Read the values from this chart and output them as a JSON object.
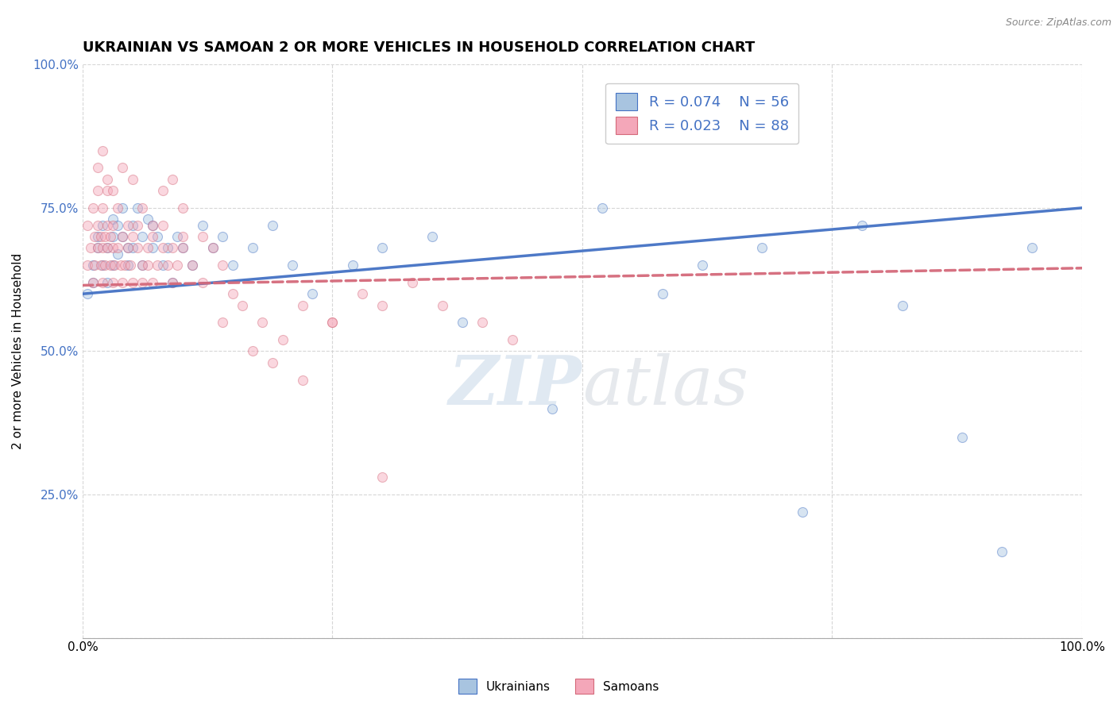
{
  "title": "UKRAINIAN VS SAMOAN 2 OR MORE VEHICLES IN HOUSEHOLD CORRELATION CHART",
  "source": "Source: ZipAtlas.com",
  "xlabel": "",
  "ylabel": "2 or more Vehicles in Household",
  "xlim": [
    0,
    1
  ],
  "ylim": [
    0,
    1
  ],
  "xticks": [
    0.0,
    0.25,
    0.5,
    0.75,
    1.0
  ],
  "xticklabels": [
    "0.0%",
    "",
    "",
    "",
    "100.0%"
  ],
  "yticks": [
    0.0,
    0.25,
    0.5,
    0.75,
    1.0
  ],
  "yticklabels": [
    "",
    "25.0%",
    "50.0%",
    "75.0%",
    "100.0%"
  ],
  "watermark_zip": "ZIP",
  "watermark_atlas": "atlas",
  "ukrainian_color": "#a8c4e0",
  "samoan_color": "#f4a7b9",
  "ukrainian_line_color": "#4472c4",
  "samoan_line_color": "#d4697a",
  "legend_r_ukrainian": "R = 0.074",
  "legend_n_ukrainian": "N = 56",
  "legend_r_samoan": "R = 0.023",
  "legend_n_samoan": "N = 88",
  "ukrainian_x": [
    0.005,
    0.01,
    0.01,
    0.015,
    0.015,
    0.02,
    0.02,
    0.025,
    0.025,
    0.03,
    0.03,
    0.03,
    0.035,
    0.035,
    0.04,
    0.04,
    0.045,
    0.045,
    0.05,
    0.05,
    0.055,
    0.06,
    0.06,
    0.065,
    0.07,
    0.07,
    0.075,
    0.08,
    0.085,
    0.09,
    0.095,
    0.1,
    0.11,
    0.12,
    0.13,
    0.14,
    0.15,
    0.17,
    0.19,
    0.21,
    0.23,
    0.27,
    0.3,
    0.35,
    0.38,
    0.47,
    0.52,
    0.58,
    0.62,
    0.68,
    0.72,
    0.78,
    0.82,
    0.88,
    0.92,
    0.95
  ],
  "ukrainian_y": [
    0.6,
    0.65,
    0.62,
    0.68,
    0.7,
    0.72,
    0.65,
    0.68,
    0.62,
    0.7,
    0.73,
    0.65,
    0.67,
    0.72,
    0.75,
    0.7,
    0.68,
    0.65,
    0.72,
    0.68,
    0.75,
    0.7,
    0.65,
    0.73,
    0.68,
    0.72,
    0.7,
    0.65,
    0.68,
    0.62,
    0.7,
    0.68,
    0.65,
    0.72,
    0.68,
    0.7,
    0.65,
    0.68,
    0.72,
    0.65,
    0.6,
    0.65,
    0.68,
    0.7,
    0.55,
    0.4,
    0.75,
    0.6,
    0.65,
    0.68,
    0.22,
    0.72,
    0.58,
    0.35,
    0.15,
    0.68
  ],
  "samoan_x": [
    0.005,
    0.005,
    0.008,
    0.01,
    0.01,
    0.012,
    0.012,
    0.015,
    0.015,
    0.015,
    0.018,
    0.018,
    0.02,
    0.02,
    0.02,
    0.022,
    0.022,
    0.025,
    0.025,
    0.025,
    0.028,
    0.028,
    0.03,
    0.03,
    0.03,
    0.032,
    0.035,
    0.035,
    0.038,
    0.04,
    0.04,
    0.042,
    0.045,
    0.045,
    0.048,
    0.05,
    0.05,
    0.055,
    0.055,
    0.06,
    0.06,
    0.065,
    0.065,
    0.07,
    0.07,
    0.075,
    0.08,
    0.08,
    0.085,
    0.09,
    0.09,
    0.095,
    0.1,
    0.1,
    0.11,
    0.12,
    0.13,
    0.14,
    0.15,
    0.16,
    0.18,
    0.2,
    0.22,
    0.25,
    0.28,
    0.3,
    0.33,
    0.36,
    0.4,
    0.43,
    0.015,
    0.02,
    0.025,
    0.03,
    0.04,
    0.05,
    0.06,
    0.07,
    0.08,
    0.09,
    0.1,
    0.12,
    0.14,
    0.17,
    0.19,
    0.22,
    0.25,
    0.3
  ],
  "samoan_y": [
    0.65,
    0.72,
    0.68,
    0.75,
    0.62,
    0.7,
    0.65,
    0.68,
    0.72,
    0.78,
    0.65,
    0.7,
    0.68,
    0.75,
    0.62,
    0.7,
    0.65,
    0.68,
    0.72,
    0.78,
    0.65,
    0.7,
    0.68,
    0.62,
    0.72,
    0.65,
    0.68,
    0.75,
    0.65,
    0.7,
    0.62,
    0.65,
    0.68,
    0.72,
    0.65,
    0.7,
    0.62,
    0.68,
    0.72,
    0.65,
    0.62,
    0.68,
    0.65,
    0.7,
    0.62,
    0.65,
    0.68,
    0.72,
    0.65,
    0.68,
    0.62,
    0.65,
    0.7,
    0.68,
    0.65,
    0.62,
    0.68,
    0.65,
    0.6,
    0.58,
    0.55,
    0.52,
    0.58,
    0.55,
    0.6,
    0.58,
    0.62,
    0.58,
    0.55,
    0.52,
    0.82,
    0.85,
    0.8,
    0.78,
    0.82,
    0.8,
    0.75,
    0.72,
    0.78,
    0.8,
    0.75,
    0.7,
    0.55,
    0.5,
    0.48,
    0.45,
    0.55,
    0.28
  ],
  "background_color": "#ffffff",
  "grid_color": "#cccccc",
  "title_fontsize": 13,
  "axis_fontsize": 11,
  "tick_fontsize": 11,
  "marker_size": 75,
  "marker_alpha": 0.45,
  "line_alpha": 0.95,
  "line_width": 2.5,
  "ukrainian_line_x0": 0.0,
  "ukrainian_line_y0": 0.6,
  "ukrainian_line_x1": 1.0,
  "ukrainian_line_y1": 0.75,
  "samoan_line_x0": 0.0,
  "samoan_line_y0": 0.615,
  "samoan_line_x1": 1.0,
  "samoan_line_y1": 0.645
}
